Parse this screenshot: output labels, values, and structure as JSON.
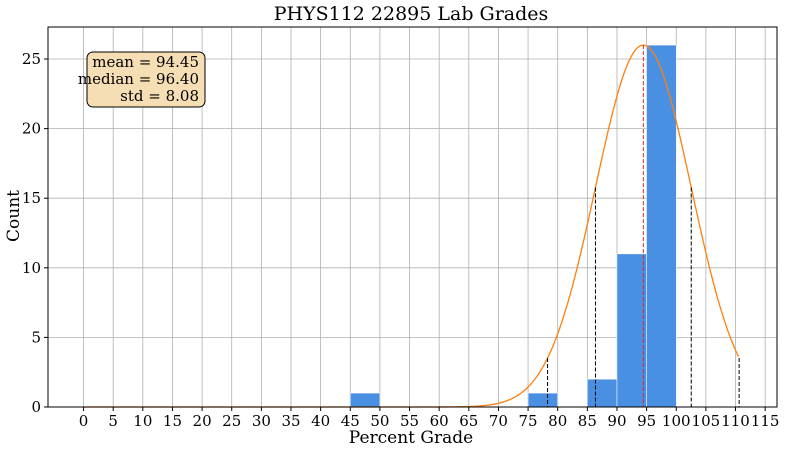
{
  "chart_data": {
    "type": "bar",
    "title": "PHYS112 22895 Lab Grades",
    "xlabel": "Percent Grade",
    "ylabel": "Count",
    "xlim": [
      -6,
      117
    ],
    "ylim": [
      0,
      27.3
    ],
    "xticks": [
      0,
      5,
      10,
      15,
      20,
      25,
      30,
      35,
      40,
      45,
      50,
      55,
      60,
      65,
      70,
      75,
      80,
      85,
      90,
      95,
      100,
      105,
      110,
      115
    ],
    "yticks": [
      0,
      5,
      10,
      15,
      20,
      25
    ],
    "grid": true,
    "bins": [
      {
        "x0": 45,
        "x1": 50,
        "count": 1
      },
      {
        "x0": 75,
        "x1": 80,
        "count": 1
      },
      {
        "x0": 85,
        "x1": 90,
        "count": 2
      },
      {
        "x0": 90,
        "x1": 95,
        "count": 11
      },
      {
        "x0": 95,
        "x1": 100,
        "count": 26
      }
    ],
    "fit_curve": {
      "mean": 94.45,
      "std": 8.08,
      "peak": 26,
      "x_start": 0,
      "x_end": 110.61
    },
    "mean_line": 94.45,
    "sigma_lines": [
      78.29,
      86.37,
      102.53,
      110.61
    ],
    "stats": {
      "mean": "mean = 94.45",
      "median": "median = 96.40",
      "std": "std = 8.08"
    },
    "colors": {
      "bar": "#4a90e2",
      "curve": "#ff7f0e",
      "mean_line": "#d62728",
      "sigma_line": "#000000",
      "grid": "#b0b0b0",
      "stats_box_fill": "#f5deb3"
    }
  }
}
